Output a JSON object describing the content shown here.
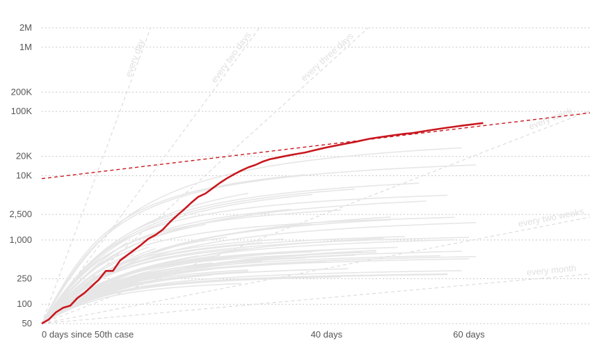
{
  "chart_data": {
    "type": "line",
    "title": "",
    "xlabel": "",
    "ylabel": "",
    "y_scale": "log",
    "xlim": [
      0,
      77
    ],
    "ylim": [
      50,
      2000000
    ],
    "grid": true,
    "y_ticks": [
      {
        "value": 2000000,
        "label": "2M"
      },
      {
        "value": 1000000,
        "label": "1M"
      },
      {
        "value": 200000,
        "label": "200K"
      },
      {
        "value": 100000,
        "label": "100K"
      },
      {
        "value": 20000,
        "label": "20K"
      },
      {
        "value": 10000,
        "label": "10K"
      },
      {
        "value": 2500,
        "label": "2,500"
      },
      {
        "value": 1000,
        "label": "1,000"
      },
      {
        "value": 250,
        "label": "250"
      },
      {
        "value": 100,
        "label": "100"
      },
      {
        "value": 50,
        "label": "50"
      }
    ],
    "x_ticks": [
      {
        "value": 0,
        "label": "0 days since 50th case"
      },
      {
        "value": 40,
        "label": "40 days"
      },
      {
        "value": 60,
        "label": "60 days"
      }
    ],
    "doubling_guides": [
      {
        "label": "every day",
        "days": 1
      },
      {
        "label": "every two days",
        "days": 2
      },
      {
        "label": "every three days",
        "days": 3
      },
      {
        "label": "every week",
        "days": 7
      },
      {
        "label": "every two weeks",
        "days": 14
      },
      {
        "label": "every month",
        "days": 30
      }
    ],
    "highlight": {
      "color": "#c8171e",
      "x": [
        0,
        1,
        2,
        3,
        4,
        5,
        6,
        7,
        8,
        9,
        10,
        11,
        12,
        13,
        14,
        15,
        16,
        17,
        18,
        19,
        20,
        21,
        22,
        23,
        24,
        25,
        26,
        27,
        28,
        29,
        30,
        31,
        32,
        33,
        34,
        35,
        36,
        37,
        38,
        39,
        40,
        41,
        42,
        43,
        44,
        45,
        46,
        47,
        48,
        49,
        50,
        51,
        52,
        53,
        54,
        55,
        56,
        57,
        58,
        59,
        60,
        61,
        62
      ],
      "y": [
        50,
        58,
        75,
        88,
        95,
        125,
        150,
        190,
        240,
        330,
        330,
        480,
        580,
        700,
        850,
        1050,
        1200,
        1450,
        1900,
        2400,
        3000,
        3800,
        4700,
        5300,
        6400,
        7700,
        9100,
        10500,
        12000,
        13500,
        14700,
        16500,
        18000,
        19000,
        20000,
        21000,
        22000,
        23000,
        24500,
        26000,
        27500,
        29000,
        30500,
        32000,
        33500,
        35500,
        37500,
        39000,
        40500,
        42000,
        43500,
        45000,
        46000,
        48000,
        50000,
        52000,
        54000,
        56000,
        58000,
        60000,
        62000,
        64000,
        66000
      ]
    },
    "trend": {
      "color": "#c8171e",
      "x": [
        0,
        77
      ],
      "y": [
        9000,
        95000
      ]
    },
    "background_series_color": "#e6e6e6"
  }
}
